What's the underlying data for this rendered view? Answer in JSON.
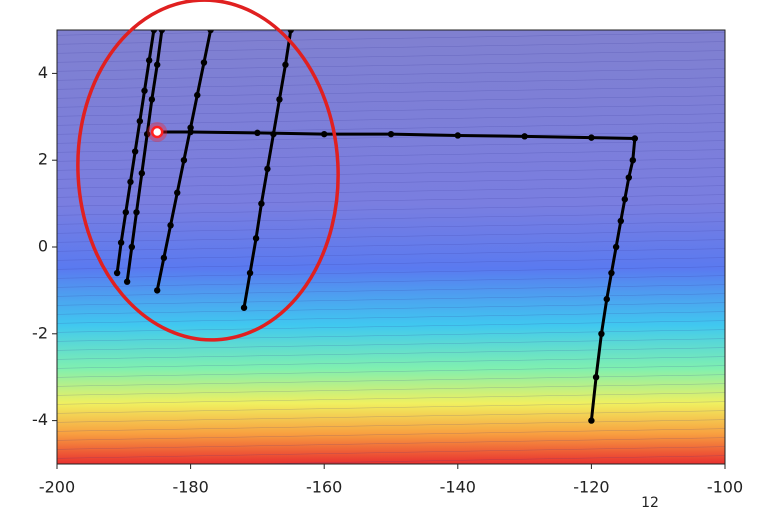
{
  "chart_data": {
    "type": "line",
    "xlim": [
      -200,
      -100
    ],
    "ylim": [
      -5,
      5
    ],
    "xticks": [
      -200,
      -180,
      -160,
      -140,
      -120,
      -100
    ],
    "yticks": [
      -4,
      -2,
      0,
      2,
      4
    ],
    "series": [
      {
        "color": "#000000",
        "x": [
          -120,
          -119.3,
          -118.5,
          -117.7,
          -117,
          -116.3,
          -115.6,
          -115,
          -114.4,
          -113.8,
          -113.5,
          -120,
          -130,
          -140,
          -150,
          -160,
          -170,
          -180,
          -185
        ],
        "values": [
          -4,
          -3,
          -2,
          -1.2,
          -0.6,
          0,
          0.6,
          1.1,
          1.6,
          2,
          2.5,
          2.52,
          2.55,
          2.57,
          2.6,
          2.6,
          2.63,
          2.65,
          2.65
        ]
      },
      {
        "color": "#000000",
        "x": [
          -191,
          -190.4,
          -189.7,
          -189,
          -188.3,
          -187.6,
          -186.9,
          -186.2,
          -185.5
        ],
        "values": [
          -0.6,
          0.1,
          0.8,
          1.5,
          2.2,
          2.9,
          3.6,
          4.3,
          5
        ]
      },
      {
        "color": "#000000",
        "x": [
          -189.5,
          -188.8,
          -188.1,
          -187.3,
          -186.5,
          -185.8,
          -185,
          -184.3
        ],
        "values": [
          -0.8,
          0,
          0.8,
          1.7,
          2.6,
          3.4,
          4.2,
          5
        ]
      },
      {
        "color": "#000000",
        "x": [
          -185,
          -184,
          -183,
          -182,
          -181,
          -180,
          -179,
          -178,
          -177
        ],
        "values": [
          -1,
          -0.25,
          0.5,
          1.25,
          2,
          2.75,
          3.5,
          4.25,
          5
        ]
      },
      {
        "color": "#000000",
        "x": [
          -172,
          -171.1,
          -170.2,
          -169.4,
          -168.5,
          -167.6,
          -166.7,
          -165.8,
          -165
        ],
        "values": [
          -1.4,
          -0.6,
          0.2,
          1,
          1.8,
          2.6,
          3.4,
          4.2,
          5
        ]
      }
    ],
    "highlight": {
      "x": -185,
      "y": 2.65,
      "color": "#ff2020"
    },
    "page_number": "12"
  }
}
